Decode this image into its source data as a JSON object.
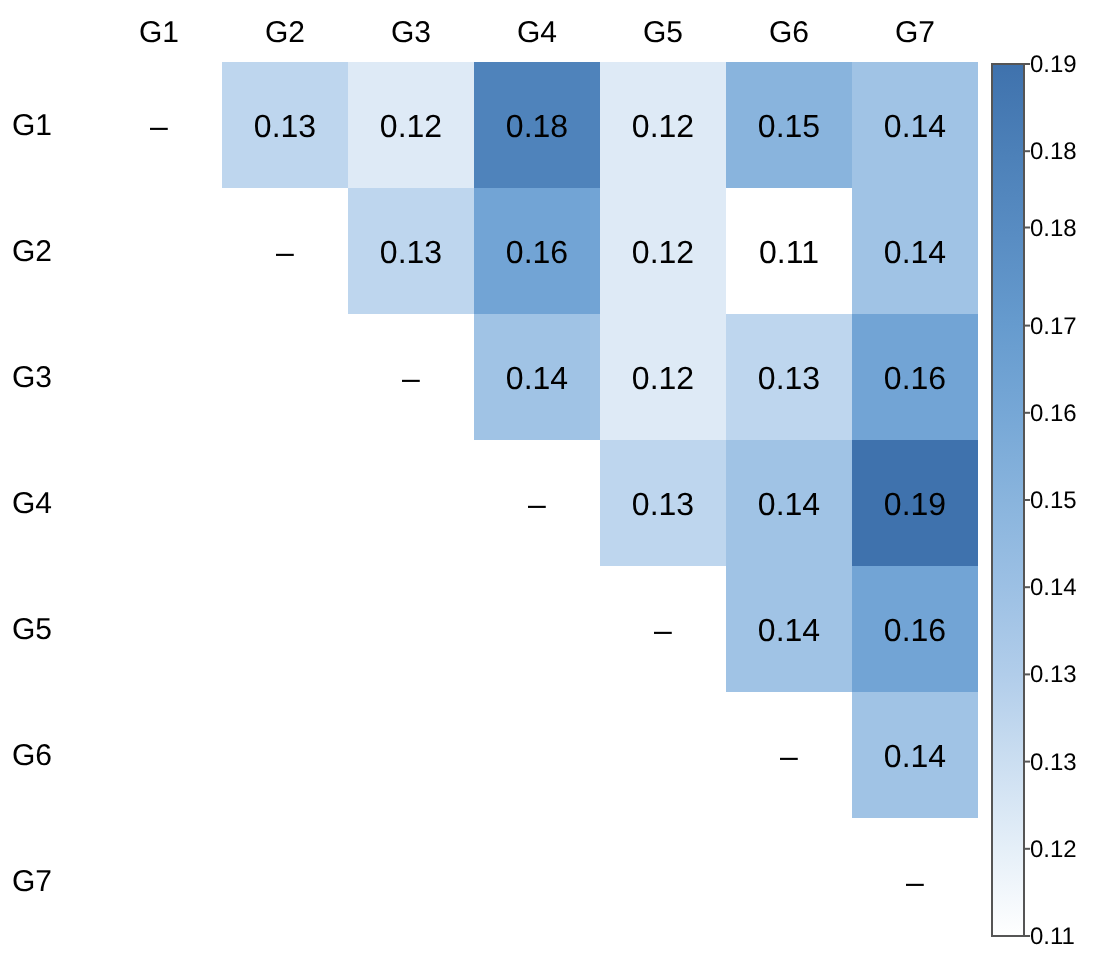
{
  "chart_data": {
    "type": "heatmap",
    "categories": [
      "G1",
      "G2",
      "G3",
      "G4",
      "G5",
      "G6",
      "G7"
    ],
    "y_categories": [
      "G1",
      "G2",
      "G3",
      "G4",
      "G5",
      "G6",
      "G7"
    ],
    "cells": [
      [
        null,
        0.13,
        0.12,
        0.18,
        0.12,
        0.15,
        0.14
      ],
      [
        null,
        null,
        0.13,
        0.16,
        0.12,
        0.11,
        0.14
      ],
      [
        null,
        null,
        null,
        0.14,
        0.12,
        0.13,
        0.16
      ],
      [
        null,
        null,
        null,
        null,
        0.13,
        0.14,
        0.19
      ],
      [
        null,
        null,
        null,
        null,
        null,
        0.14,
        0.16
      ],
      [
        null,
        null,
        null,
        null,
        null,
        null,
        0.14
      ],
      [
        null,
        null,
        null,
        null,
        null,
        null,
        null
      ]
    ],
    "cell_labels": [
      [
        "–",
        "0.13",
        "0.12",
        "0.18",
        "0.12",
        "0.15",
        "0.14"
      ],
      [
        null,
        "–",
        "0.13",
        "0.16",
        "0.12",
        "0.11",
        "0.14"
      ],
      [
        null,
        null,
        "–",
        "0.14",
        "0.12",
        "0.13",
        "0.16"
      ],
      [
        null,
        null,
        null,
        "–",
        "0.13",
        "0.14",
        "0.19"
      ],
      [
        null,
        null,
        null,
        null,
        "–",
        "0.14",
        "0.16"
      ],
      [
        null,
        null,
        null,
        null,
        null,
        "–",
        "0.14"
      ],
      [
        null,
        null,
        null,
        null,
        null,
        null,
        "–"
      ]
    ],
    "colors": [
      "#ffffff",
      "#a8c8e8",
      "#6a9fd2",
      "#3f72ad"
    ],
    "clim": [
      0.11,
      0.19
    ],
    "cticks": [
      {
        "value": 0.11,
        "label": "0.11"
      },
      {
        "value": 0.118,
        "label": "0.12"
      },
      {
        "value": 0.126,
        "label": "0.13"
      },
      {
        "value": 0.134,
        "label": "0.13"
      },
      {
        "value": 0.142,
        "label": "0.14"
      },
      {
        "value": 0.15,
        "label": "0.15"
      },
      {
        "value": 0.158,
        "label": "0.16"
      },
      {
        "value": 0.166,
        "label": "0.17"
      },
      {
        "value": 0.175,
        "label": "0.18"
      },
      {
        "value": 0.182,
        "label": "0.18"
      },
      {
        "value": 0.19,
        "label": "0.19"
      }
    ]
  }
}
